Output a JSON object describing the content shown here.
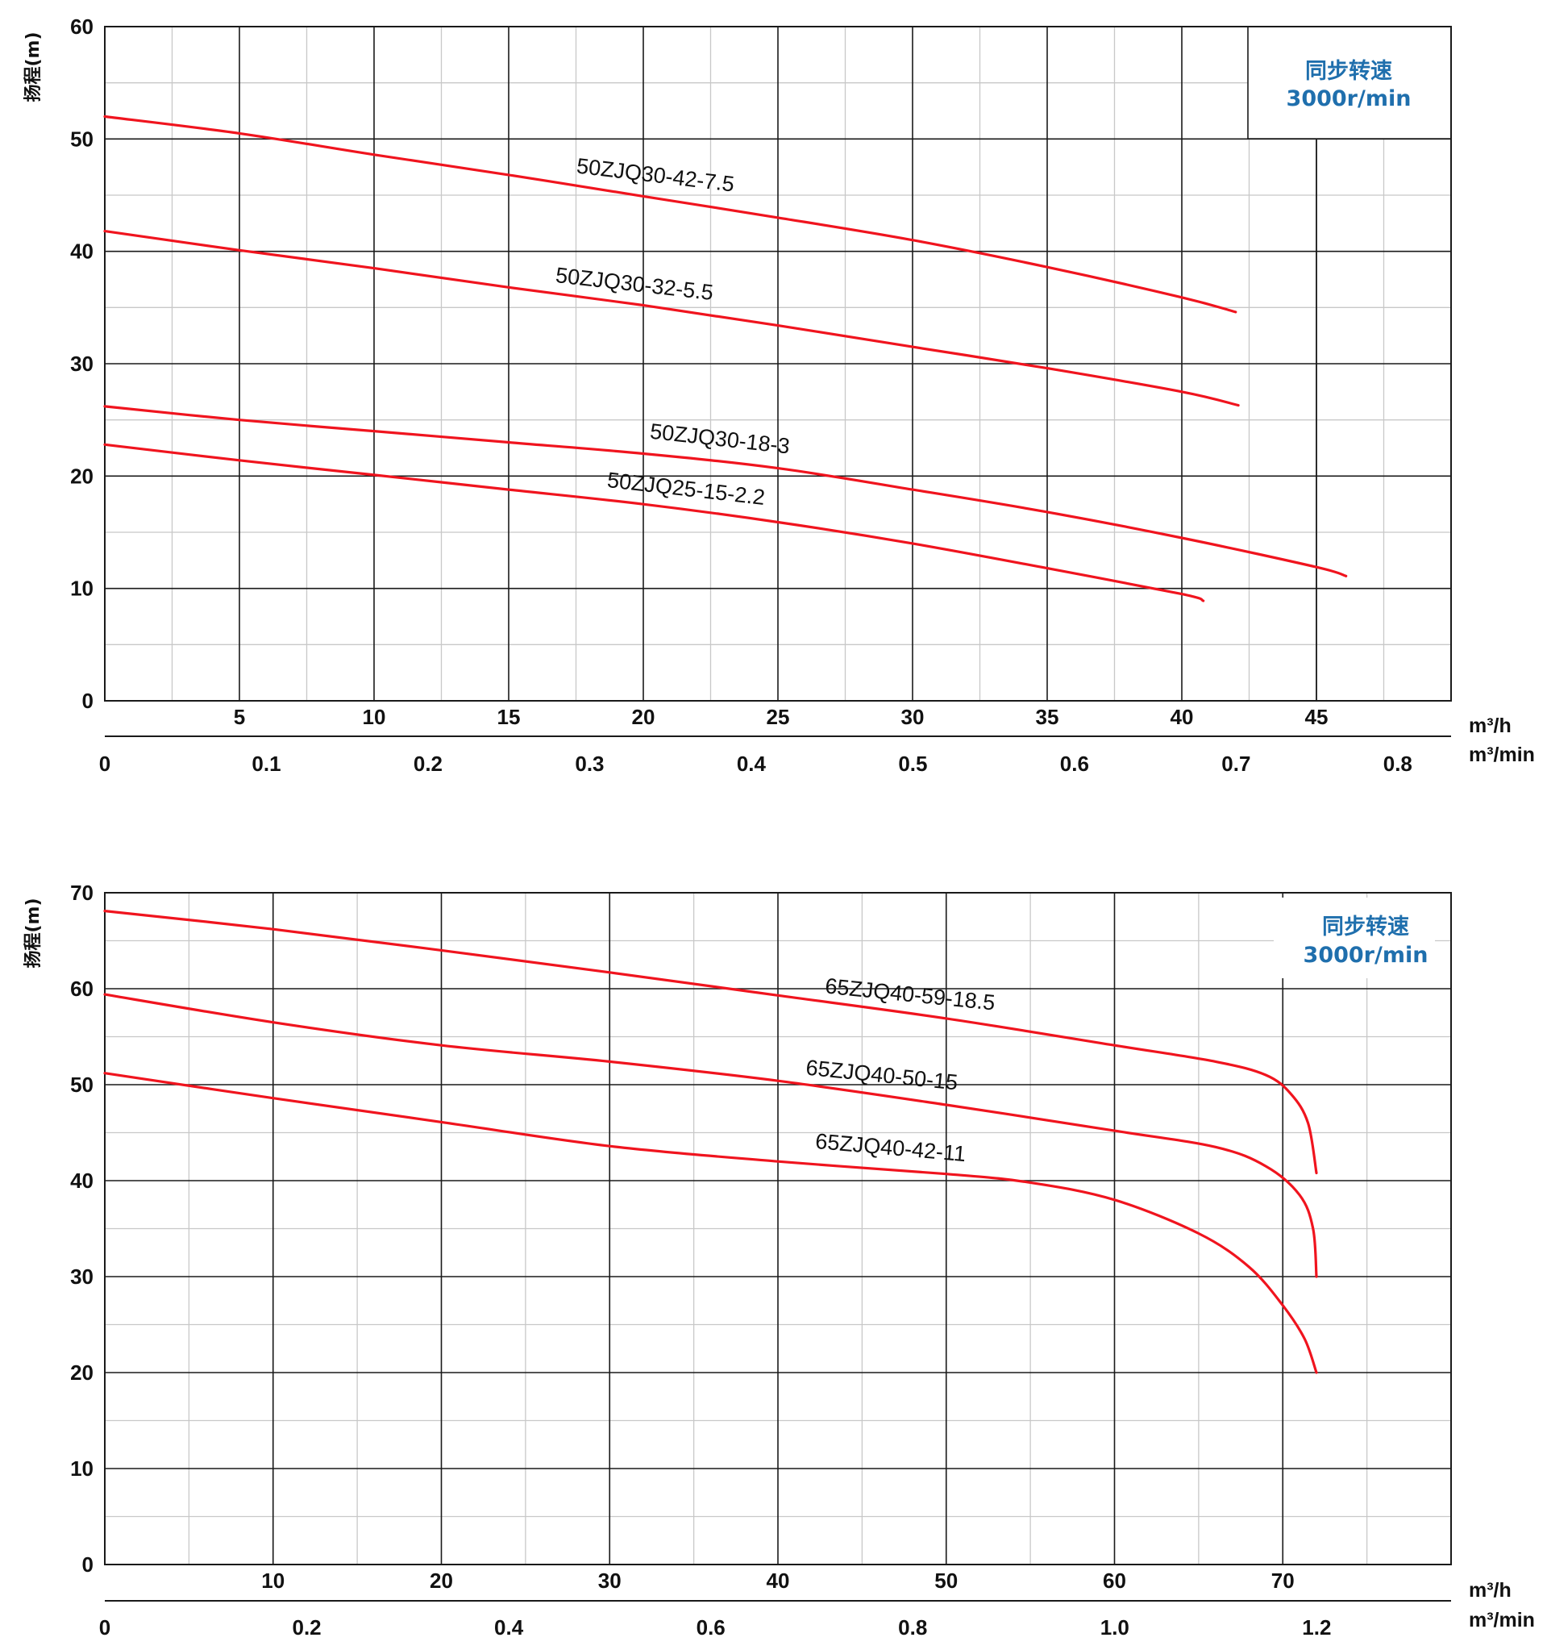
{
  "colors": {
    "curve": "#f0141e",
    "note": "#1f6fad",
    "grid_major": "#1a1a1a",
    "grid_minor": "#c8c8c8"
  },
  "chart_data": [
    {
      "type": "line",
      "ylabel": "扬程(m)",
      "note_lines": [
        "同步转速",
        "3000r/min"
      ],
      "x_unit_top": "m³/h",
      "x_unit_bottom": "m³/min",
      "ylim": [
        0,
        60
      ],
      "xlim": [
        0,
        50
      ],
      "xlim_min": [
        0,
        0.833
      ],
      "y_ticks": [
        0,
        10,
        20,
        30,
        40,
        50,
        60
      ],
      "x_ticks_top": [
        5,
        10,
        15,
        20,
        25,
        30,
        35,
        40,
        45
      ],
      "x_ticks_bottom": [
        "0",
        "0.1",
        "0.2",
        "0.3",
        "0.4",
        "0.5",
        "0.6",
        "0.7",
        "0.8"
      ],
      "x_ticks_bottom_values": [
        0,
        0.1,
        0.2,
        0.3,
        0.4,
        0.5,
        0.6,
        0.7,
        0.8
      ],
      "grid": true,
      "series": [
        {
          "name": "50ZJQ30-42-7.5",
          "x": [
            0,
            5,
            10,
            15,
            20,
            25,
            30,
            35,
            40,
            42
          ],
          "y": [
            52,
            50.5,
            48.6,
            46.8,
            44.9,
            43.0,
            41.0,
            38.6,
            35.9,
            34.6
          ]
        },
        {
          "name": "50ZJQ30-32-5.5",
          "x": [
            0,
            5,
            10,
            15,
            20,
            25,
            30,
            35,
            40,
            42.1
          ],
          "y": [
            41.8,
            40.1,
            38.5,
            36.8,
            35.2,
            33.4,
            31.5,
            29.6,
            27.5,
            26.3
          ]
        },
        {
          "name": "50ZJQ30-18-3",
          "x": [
            0,
            5,
            10,
            15,
            20,
            25,
            30,
            35,
            40,
            45,
            46.1
          ],
          "y": [
            26.2,
            25.0,
            24.0,
            23.0,
            22.0,
            20.7,
            18.8,
            16.8,
            14.5,
            11.9,
            11.1
          ]
        },
        {
          "name": "50ZJQ25-15-2.2",
          "x": [
            0,
            5,
            10,
            15,
            20,
            25,
            30,
            35,
            40,
            40.8
          ],
          "y": [
            22.8,
            21.4,
            20.1,
            18.8,
            17.5,
            15.9,
            14.0,
            11.8,
            9.5,
            8.9
          ]
        }
      ]
    },
    {
      "type": "line",
      "ylabel": "扬程(m)",
      "note_lines": [
        "同步转速",
        "3000r/min"
      ],
      "x_unit_top": "m³/h",
      "x_unit_bottom": "m³/min",
      "ylim": [
        0,
        70
      ],
      "xlim": [
        0,
        80
      ],
      "xlim_min": [
        0,
        1.333
      ],
      "y_ticks": [
        0,
        10,
        20,
        30,
        40,
        50,
        60,
        70
      ],
      "x_ticks_top": [
        10,
        20,
        30,
        40,
        50,
        60,
        70
      ],
      "x_ticks_bottom": [
        "0",
        "0.2",
        "0.4",
        "0.6",
        "0.8",
        "1.0",
        "1.2"
      ],
      "x_ticks_bottom_values": [
        0,
        0.2,
        0.4,
        0.6,
        0.8,
        1.0,
        1.2
      ],
      "grid": true,
      "series": [
        {
          "name": "65ZJQ40-59-18.5",
          "x": [
            0,
            10,
            20,
            30,
            40,
            50,
            60,
            66,
            69,
            70.5,
            71.5,
            72
          ],
          "y": [
            68.1,
            66.2,
            64.0,
            61.7,
            59.3,
            56.9,
            54.1,
            52.4,
            51.0,
            49.0,
            46.0,
            40.8
          ]
        },
        {
          "name": "65ZJQ40-50-15",
          "x": [
            0,
            10,
            20,
            30,
            40,
            50,
            60,
            66,
            69,
            71,
            71.8,
            72
          ],
          "y": [
            59.4,
            56.5,
            54.1,
            52.4,
            50.4,
            47.9,
            45.2,
            43.5,
            41.5,
            38.5,
            35.0,
            30.0
          ]
        },
        {
          "name": "65ZJQ40-42-11",
          "x": [
            0,
            10,
            20,
            30,
            40,
            50,
            55,
            60,
            65,
            68,
            70,
            71.3,
            72
          ],
          "y": [
            51.2,
            48.6,
            46.1,
            43.6,
            42.0,
            40.7,
            39.8,
            38.0,
            34.5,
            31.0,
            27.0,
            23.5,
            20.0
          ]
        }
      ]
    }
  ]
}
